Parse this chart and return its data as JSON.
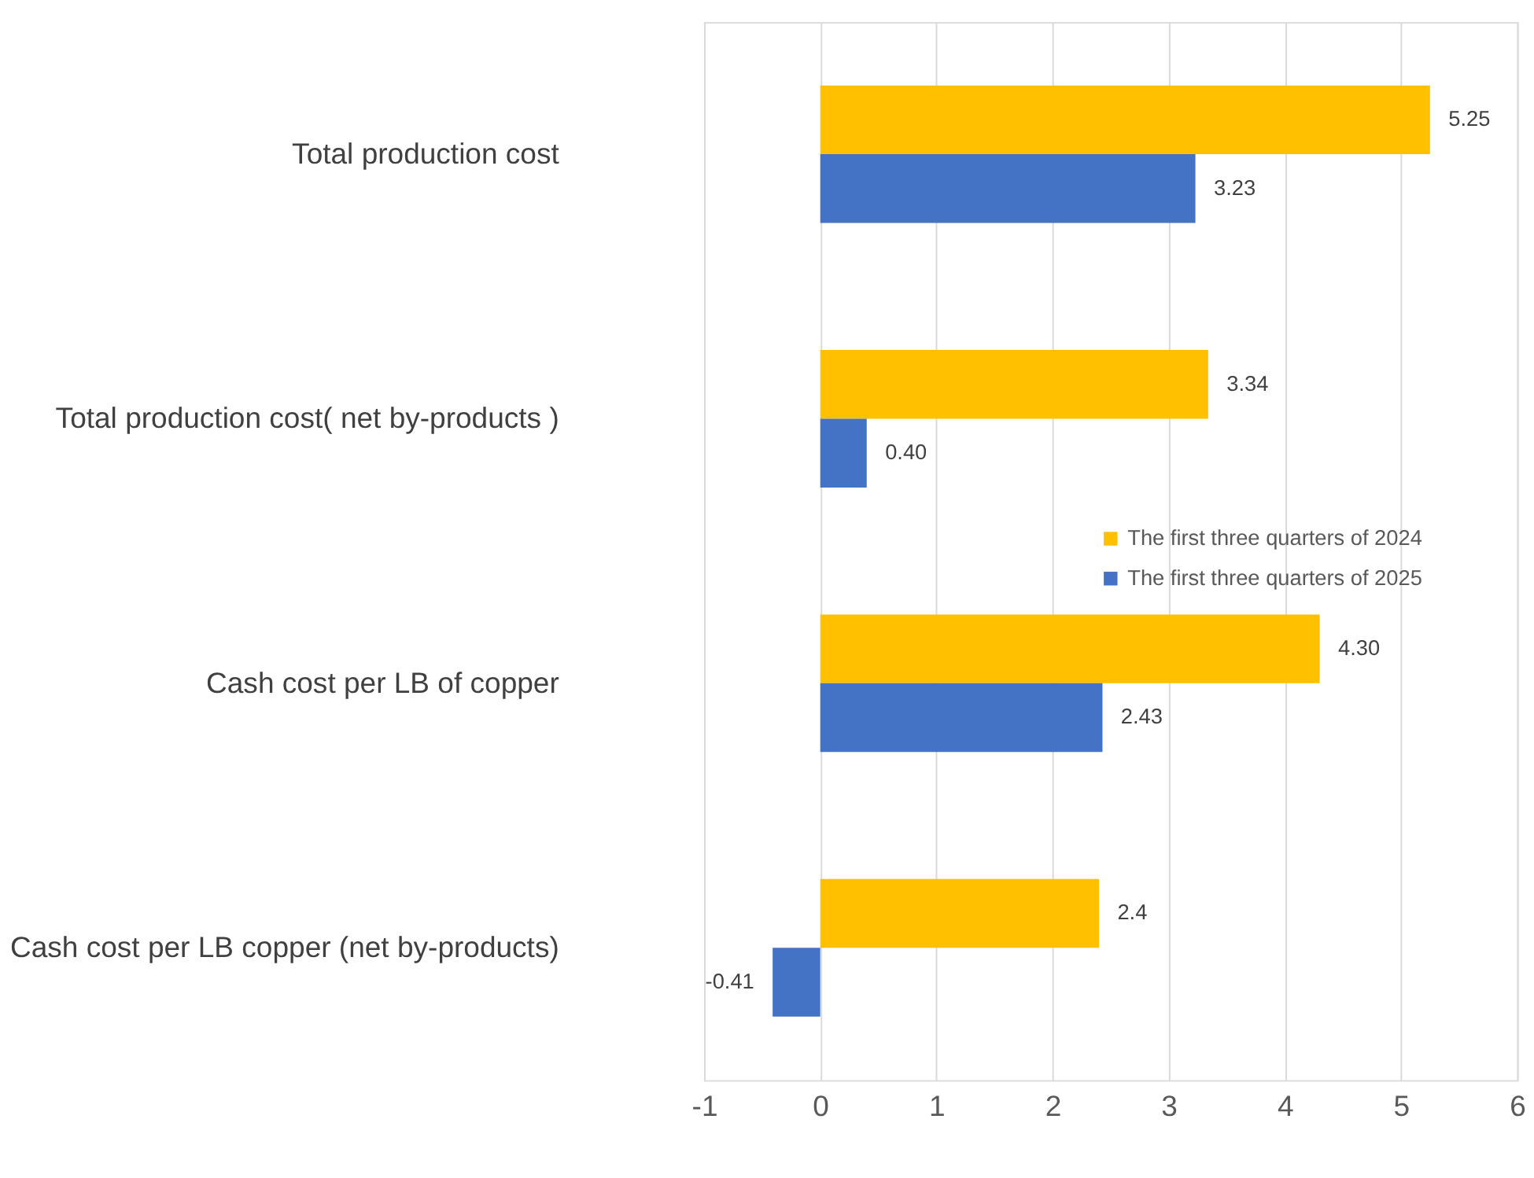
{
  "chart_data": {
    "type": "bar",
    "orientation": "horizontal",
    "categories": [
      "Total production cost",
      "Total production cost( net by-products )",
      "Cash cost per LB of copper",
      "Cash cost per LB copper (net by-products)"
    ],
    "series": [
      {
        "name": "The first three quarters of 2024",
        "color": "#ffc000",
        "values": [
          5.25,
          3.34,
          4.3,
          2.4
        ],
        "value_labels": [
          "5.25",
          "3.34",
          "4.30",
          "2.4"
        ]
      },
      {
        "name": "The first three quarters of 2025",
        "color": "#4472c4",
        "values": [
          3.23,
          0.4,
          2.43,
          -0.41
        ],
        "value_labels": [
          "3.23",
          "0.40",
          "2.43",
          "-0.41"
        ]
      }
    ],
    "xlim": [
      -1,
      6
    ],
    "xticks": [
      -1,
      0,
      1,
      2,
      3,
      4,
      5,
      6
    ],
    "grid": "x",
    "legend": "right"
  }
}
